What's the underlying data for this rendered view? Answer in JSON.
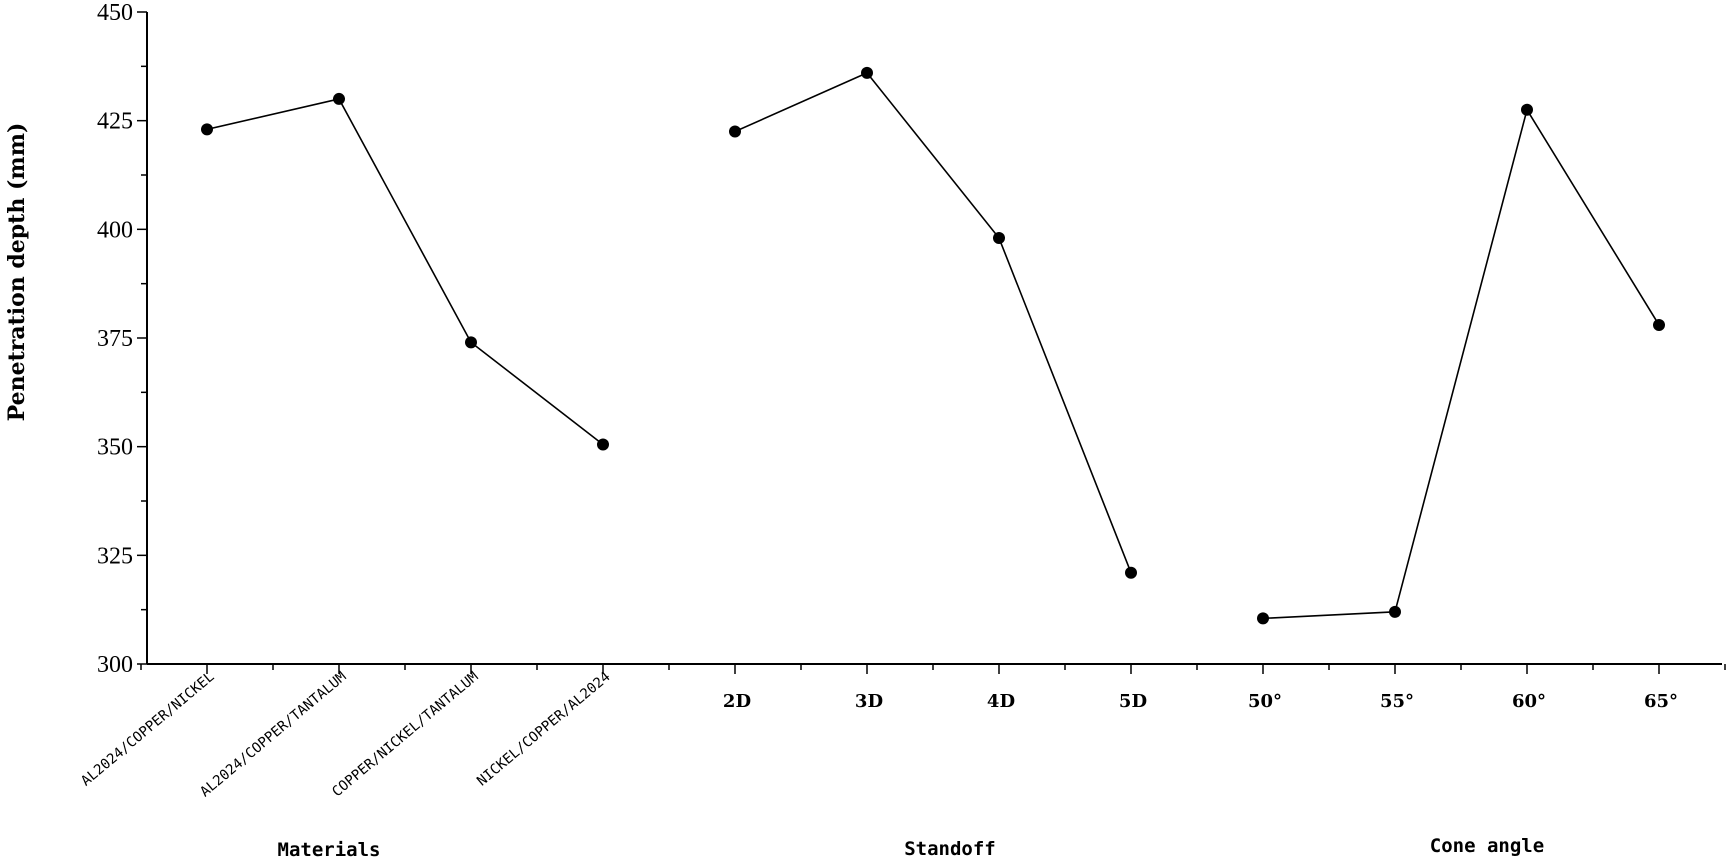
{
  "chart_data": {
    "type": "line",
    "ylabel": "Penetration depth (mm)",
    "ylim": [
      300,
      450
    ],
    "yticks": [
      "450",
      "425",
      "400",
      "375",
      "350",
      "325",
      "300"
    ],
    "grid": false,
    "legend": "none",
    "line_color": "#000000",
    "marker_color": "#000000",
    "groups": [
      {
        "name": "Materials",
        "categories": [
          "AL2024/COPPER/NICKEL",
          "AL2024/COPPER/TANTALUM",
          "COPPER/NICKEL/TANTALUM",
          "NICKEL/COPPER/AL2024"
        ],
        "values": [
          423,
          430,
          374,
          350.5
        ]
      },
      {
        "name": "Standoff",
        "categories": [
          "2D",
          "3D",
          "4D",
          "5D"
        ],
        "values": [
          422.5,
          436,
          398,
          321
        ]
      },
      {
        "name": "Cone angle",
        "categories": [
          "50°",
          "55°",
          "60°",
          "65°"
        ],
        "values": [
          310.5,
          312,
          427.5,
          378
        ]
      }
    ]
  }
}
